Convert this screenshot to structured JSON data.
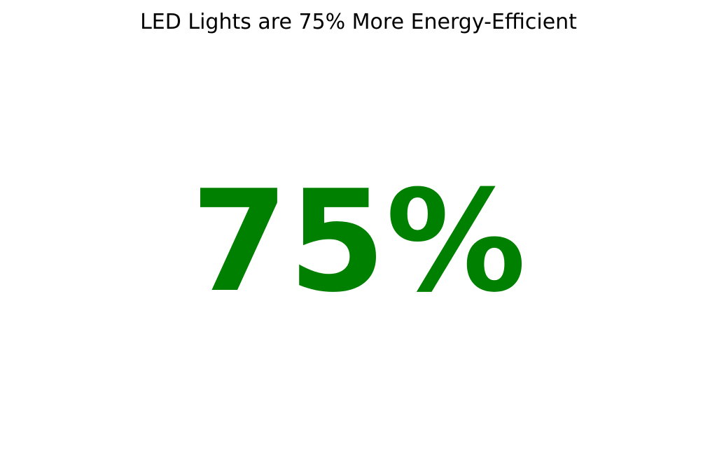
{
  "chart_data": {
    "type": "table",
    "title": "LED Lights are 75% More Energy-Efficient",
    "value": 75,
    "value_label": "75%",
    "value_color": "#008000",
    "axes": "off",
    "grid": false,
    "legend": "none"
  }
}
